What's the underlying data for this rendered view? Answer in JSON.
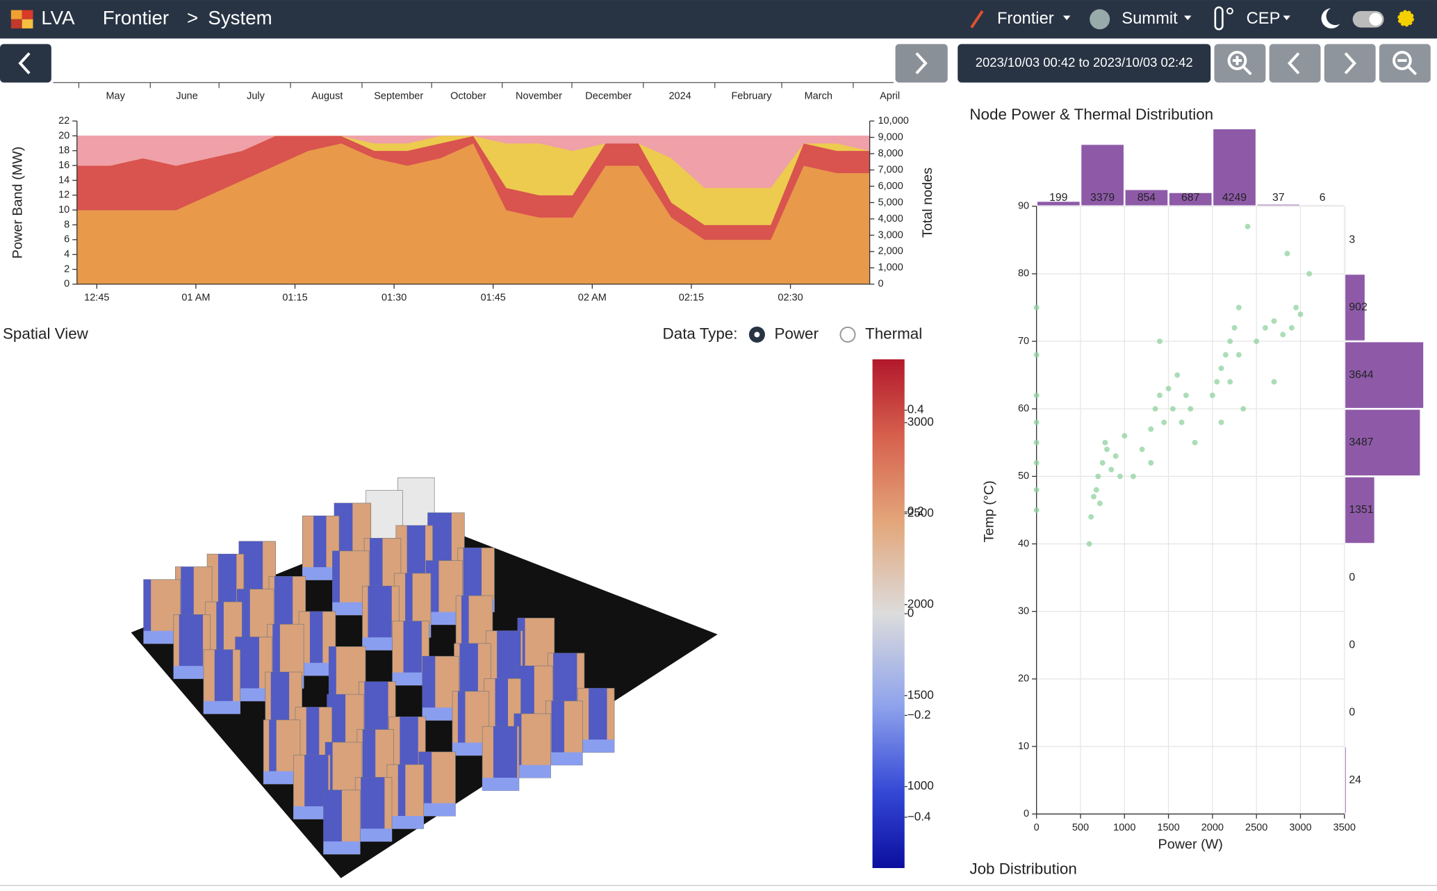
{
  "header": {
    "app": "LVA",
    "breadcrumb": [
      "Frontier",
      "System"
    ],
    "separator": ">",
    "menus": [
      "Frontier",
      "Summit",
      "CEP"
    ]
  },
  "timeline": {
    "months": [
      "May",
      "June",
      "July",
      "August",
      "September",
      "October",
      "November",
      "December",
      "2024",
      "February",
      "March",
      "April"
    ],
    "range": "2023/10/03 00:42 to 2023/10/03 02:42"
  },
  "chart_data": [
    {
      "type": "area",
      "stacked": true,
      "x": [
        42,
        47,
        52,
        57,
        62,
        67,
        72,
        77,
        82,
        87,
        92,
        97,
        102,
        107,
        112,
        117,
        122,
        127,
        132,
        137,
        142,
        147,
        152,
        157,
        162
      ],
      "series": [
        {
          "color": "#e8994a",
          "values": [
            10,
            10,
            10,
            10,
            12,
            14,
            16,
            18,
            19,
            17,
            16,
            17,
            19,
            10,
            9,
            9,
            16,
            16,
            9,
            6,
            6,
            6,
            16,
            15,
            15
          ]
        },
        {
          "color": "#d9534f",
          "values": [
            6,
            6,
            7,
            6,
            5,
            4,
            4,
            2,
            1,
            1,
            2,
            2,
            1,
            3,
            3,
            3,
            3,
            3,
            2,
            2,
            2,
            2,
            3,
            3,
            3
          ]
        },
        {
          "color": "#eccb4f",
          "values": [
            0,
            0,
            0,
            0,
            0,
            0,
            0,
            0,
            0,
            1,
            1,
            1,
            0,
            6,
            7,
            6,
            0,
            0,
            6,
            5,
            5,
            5,
            0,
            1,
            0
          ]
        },
        {
          "color": "#efa0a8",
          "values": [
            4,
            4,
            3,
            4,
            3,
            2,
            0,
            0,
            0,
            1,
            1,
            0,
            0,
            1,
            1,
            2,
            1,
            1,
            3,
            7,
            7,
            7,
            1,
            1,
            2
          ]
        }
      ],
      "xlim": [
        42,
        162
      ],
      "xticks": [
        {
          "value": 45,
          "label": "12:45"
        },
        {
          "value": 60,
          "label": "01 AM"
        },
        {
          "value": 75,
          "label": "01:15"
        },
        {
          "value": 90,
          "label": "01:30"
        },
        {
          "value": 105,
          "label": "01:45"
        },
        {
          "value": 120,
          "label": "02 AM"
        },
        {
          "value": 135,
          "label": "02:15"
        },
        {
          "value": 150,
          "label": "02:30"
        }
      ],
      "ylim": [
        0,
        22
      ],
      "yticks": [
        0,
        2,
        4,
        6,
        8,
        10,
        12,
        14,
        16,
        18,
        20,
        22
      ],
      "y2lim": [
        0,
        10000
      ],
      "y2ticks": [
        0,
        {
          "value": 1000,
          "label": "1,000"
        },
        {
          "value": 2000,
          "label": "2,000"
        },
        {
          "value": 3000,
          "label": "3,000"
        },
        {
          "value": 4000,
          "label": "4,000"
        },
        {
          "value": 5000,
          "label": "5,000"
        },
        {
          "value": 6000,
          "label": "6,000"
        },
        {
          "value": 7000,
          "label": "7,000"
        },
        {
          "value": 8000,
          "label": "8,000"
        },
        {
          "value": 9000,
          "label": "9,000"
        },
        {
          "value": 10000,
          "label": "10,000"
        }
      ],
      "ylabel": "Power Band (MW)",
      "y2label": "Total nodes"
    },
    {
      "type": "scatter",
      "title": "Node Power & Thermal Distribution",
      "color": "#8fd19e",
      "x": [
        0,
        0,
        0,
        0,
        0,
        0,
        0,
        0,
        600,
        620,
        650,
        700,
        750,
        800,
        680,
        720,
        900,
        850,
        780,
        950,
        1000,
        1100,
        1200,
        1300,
        1350,
        1400,
        1450,
        1500,
        1550,
        1600,
        1650,
        1700,
        1750,
        1800,
        1400,
        1300,
        2000,
        2050,
        2100,
        2150,
        2200,
        2250,
        2300,
        2200,
        2300,
        2350,
        2100,
        2400,
        2500,
        2600,
        2700,
        2800,
        2900,
        3000,
        3100,
        2850,
        2950,
        2700
      ],
      "y": [
        45,
        52,
        58,
        62,
        68,
        75,
        48,
        55,
        40,
        44,
        47,
        50,
        52,
        54,
        48,
        46,
        53,
        51,
        55,
        50,
        56,
        50,
        54,
        57,
        60,
        62,
        58,
        63,
        60,
        65,
        58,
        62,
        60,
        55,
        70,
        52,
        62,
        64,
        66,
        68,
        70,
        72,
        75,
        64,
        68,
        60,
        58,
        87,
        70,
        72,
        73,
        71,
        72,
        74,
        80,
        83,
        75,
        64
      ],
      "xlim": [
        0,
        3500
      ],
      "xticks": [
        0,
        500,
        1000,
        1500,
        2000,
        2500,
        3000,
        3500
      ],
      "ylim": [
        0,
        90
      ],
      "yticks": [
        0,
        10,
        20,
        30,
        40,
        50,
        60,
        70,
        80,
        90
      ],
      "xlabel": "Power (W)",
      "ylabel": "Temp (°C)",
      "grid": true,
      "x_histogram": {
        "color": "#8e5aa8",
        "bins": [
          0,
          500,
          1000,
          1500,
          2000,
          2500,
          3000,
          3500
        ],
        "counts": [
          199,
          3379,
          854,
          687,
          4249,
          37,
          6
        ]
      },
      "y_histogram": {
        "color": "#8e5aa8",
        "bins": [
          0,
          10,
          20,
          30,
          40,
          50,
          60,
          70,
          80,
          90
        ],
        "counts": [
          24,
          0,
          0,
          0,
          1351,
          3487,
          3644,
          902,
          3
        ]
      }
    }
  ],
  "spatial_view": {
    "title": "Spatial View",
    "data_type_label": "Data Type:",
    "options": [
      "Power",
      "Thermal"
    ],
    "selected": 0,
    "colorbar": {
      "power_lim": [
        552,
        3348
      ],
      "power_ticks": [
        1000,
        1500,
        2000,
        2500,
        3000
      ],
      "thermal_lim": [
        -0.5,
        0.5
      ],
      "thermal_ticks": [
        {
          "value": -0.4,
          "label": "−0.4"
        },
        {
          "value": -0.2,
          "label": "−0.2"
        },
        0,
        0.2,
        0.4
      ]
    }
  },
  "job_distribution": {
    "title": "Job Distribution"
  }
}
